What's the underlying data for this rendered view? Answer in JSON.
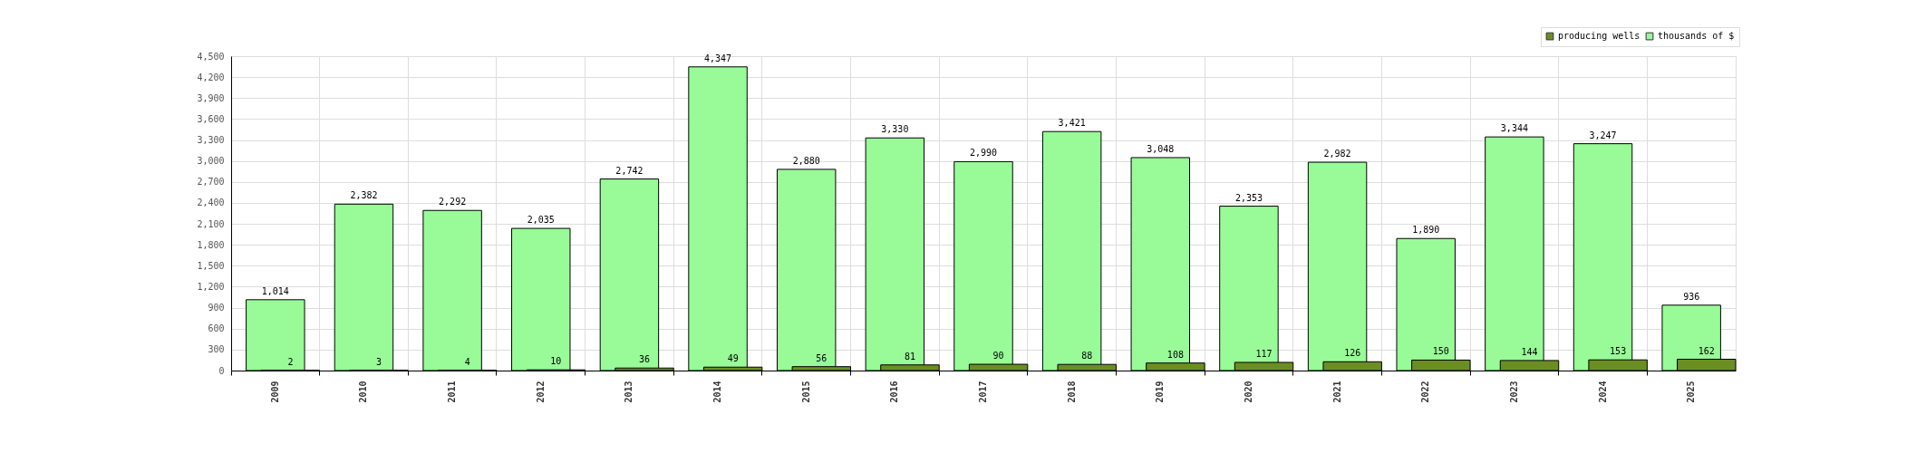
{
  "chart_data": {
    "type": "bar",
    "categories": [
      "2009",
      "2010",
      "2011",
      "2012",
      "2013",
      "2014",
      "2015",
      "2016",
      "2017",
      "2018",
      "2019",
      "2020",
      "2021",
      "2022",
      "2023",
      "2024",
      "2025"
    ],
    "series": [
      {
        "name": "producing wells",
        "color": "#6b8e23",
        "values": [
          2,
          3,
          4,
          10,
          36,
          49,
          56,
          81,
          90,
          88,
          108,
          117,
          126,
          150,
          144,
          153,
          162
        ],
        "value_labels": [
          "2",
          "3",
          "4",
          "10",
          "36",
          "49",
          "56",
          "81",
          "90",
          "88",
          "108",
          "117",
          "126",
          "150",
          "144",
          "153",
          "162"
        ]
      },
      {
        "name": "thousands of $",
        "color": "#98fb98",
        "values": [
          1014,
          2382,
          2292,
          2035,
          2742,
          4347,
          2880,
          3330,
          2990,
          3421,
          3048,
          2353,
          2982,
          1890,
          3344,
          3247,
          936
        ],
        "value_labels": [
          "1,014",
          "2,382",
          "2,292",
          "2,035",
          "2,742",
          "4,347",
          "2,880",
          "3,330",
          "2,990",
          "3,421",
          "3,048",
          "2,353",
          "2,982",
          "1,890",
          "3,344",
          "3,247",
          "936"
        ]
      }
    ],
    "ylim": [
      0,
      4500
    ],
    "yticks": [
      0,
      300,
      600,
      900,
      {
        "value": 1200,
        "label": "1,200"
      },
      {
        "value": 1500,
        "label": "1,500"
      },
      {
        "value": 1800,
        "label": "1,800"
      },
      {
        "value": 2100,
        "label": "2,100"
      },
      {
        "value": 2400,
        "label": "2,400"
      },
      {
        "value": 2700,
        "label": "2,700"
      },
      {
        "value": 3000,
        "label": "3,000"
      },
      {
        "value": 3300,
        "label": "3,300"
      },
      {
        "value": 3600,
        "label": "3,600"
      },
      {
        "value": 3900,
        "label": "3,900"
      },
      {
        "value": 4200,
        "label": "4,200"
      },
      {
        "value": 4500,
        "label": "4,500"
      }
    ],
    "grid": true,
    "legend": "top right"
  }
}
